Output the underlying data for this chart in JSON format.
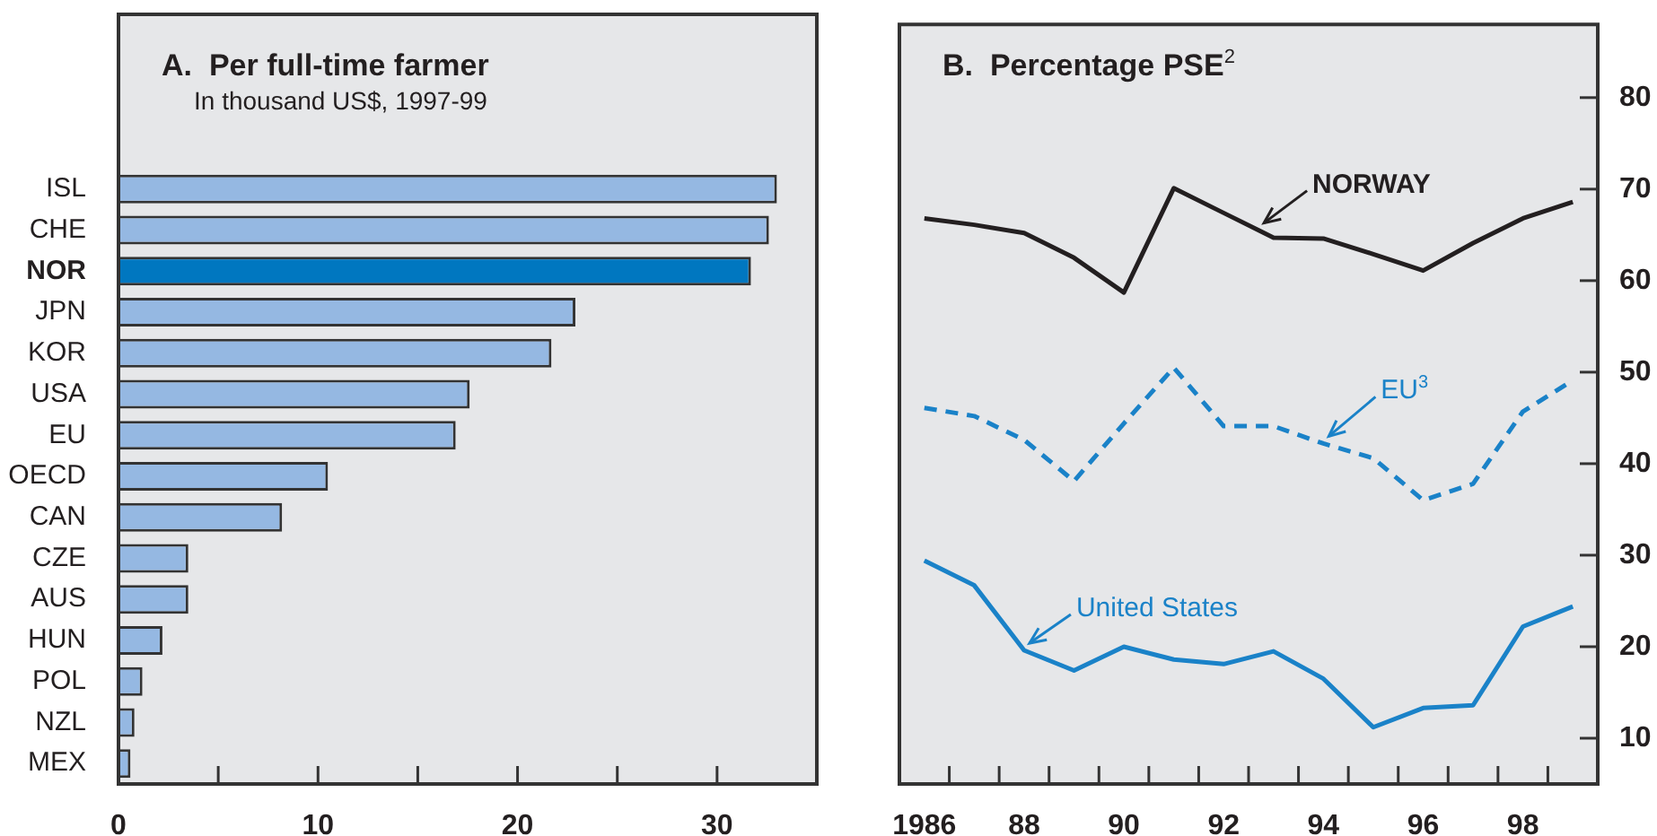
{
  "chart_data": [
    {
      "type": "bar",
      "orientation": "horizontal",
      "title": "A.  Per full-time farmer",
      "subtitle": "In thousand US$, 1997-99",
      "categories": [
        "ISL",
        "CHE",
        "NOR",
        "JPN",
        "KOR",
        "USA",
        "EU",
        "OECD",
        "CAN",
        "CZE",
        "AUS",
        "HUN",
        "POL",
        "NZL",
        "MEX"
      ],
      "values": [
        33.0,
        32.6,
        31.7,
        22.9,
        21.7,
        17.6,
        16.9,
        10.5,
        8.2,
        3.5,
        3.5,
        2.2,
        1.2,
        0.8,
        0.6
      ],
      "colors": [
        "#95b8e2",
        "#95b8e2",
        "#0077c0",
        "#95b8e2",
        "#95b8e2",
        "#95b8e2",
        "#95b8e2",
        "#95b8e2",
        "#95b8e2",
        "#95b8e2",
        "#95b8e2",
        "#95b8e2",
        "#95b8e2",
        "#95b8e2",
        "#95b8e2"
      ],
      "xlim": [
        0,
        35
      ],
      "xticks": [
        0,
        {
          "value": 5,
          "label": null
        },
        10,
        {
          "value": 15,
          "label": null
        },
        20,
        {
          "value": 25,
          "label": null
        },
        30
      ]
    },
    {
      "type": "line",
      "title": "B.  Percentage PSE$^{2}$",
      "x": [
        1986,
        1987,
        1988,
        1989,
        1990,
        1991,
        1992,
        1993,
        1994,
        1995,
        1996,
        1997,
        1998,
        1999
      ],
      "series": [
        {
          "name": "NORWAY",
          "color": "#231f20",
          "line_style": "solid",
          "values": [
            66.8,
            66.1,
            65.2,
            62.5,
            58.7,
            70.1,
            67.4,
            64.7,
            64.6,
            62.9,
            61.1,
            64.1,
            66.8,
            68.6
          ]
        },
        {
          "name": "EU$^{3}$",
          "color": "#1a82c8",
          "line_style": "dashed",
          "values": [
            46.1,
            45.2,
            42.6,
            38.1,
            44.4,
            50.5,
            44.1,
            44.1,
            42.2,
            40.6,
            36.0,
            37.8,
            45.7,
            49.1
          ]
        },
        {
          "name": "United States",
          "color": "#1a82c8",
          "line_style": "solid",
          "values": [
            29.4,
            26.7,
            19.6,
            17.4,
            20.0,
            18.6,
            18.1,
            19.5,
            16.5,
            11.2,
            13.3,
            13.6,
            22.2,
            24.4
          ]
        }
      ],
      "marker": "none",
      "xlim": [
        1985.5,
        1999.5
      ],
      "xticks": [
        {
          "value": 1986,
          "label": "1986"
        },
        {
          "value": 1986.5,
          "label": null
        },
        {
          "value": 1987.5,
          "label": null
        },
        {
          "value": 1988,
          "label": "88"
        },
        {
          "value": 1988.5,
          "label": null
        },
        {
          "value": 1989.5,
          "label": null
        },
        {
          "value": 1990,
          "label": "90"
        },
        {
          "value": 1990.5,
          "label": null
        },
        {
          "value": 1991.5,
          "label": null
        },
        {
          "value": 1992,
          "label": "92"
        },
        {
          "value": 1992.5,
          "label": null
        },
        {
          "value": 1993.5,
          "label": null
        },
        {
          "value": 1994,
          "label": "94"
        },
        {
          "value": 1994.5,
          "label": null
        },
        {
          "value": 1995.5,
          "label": null
        },
        {
          "value": 1996,
          "label": "96"
        },
        {
          "value": 1996.5,
          "label": null
        },
        {
          "value": 1997.5,
          "label": null
        },
        {
          "value": 1998,
          "label": "98"
        },
        {
          "value": 1998.5,
          "label": null
        }
      ],
      "ylim": [
        5,
        88
      ],
      "yticks": [
        10,
        20,
        30,
        40,
        50,
        60,
        70,
        80
      ]
    }
  ]
}
